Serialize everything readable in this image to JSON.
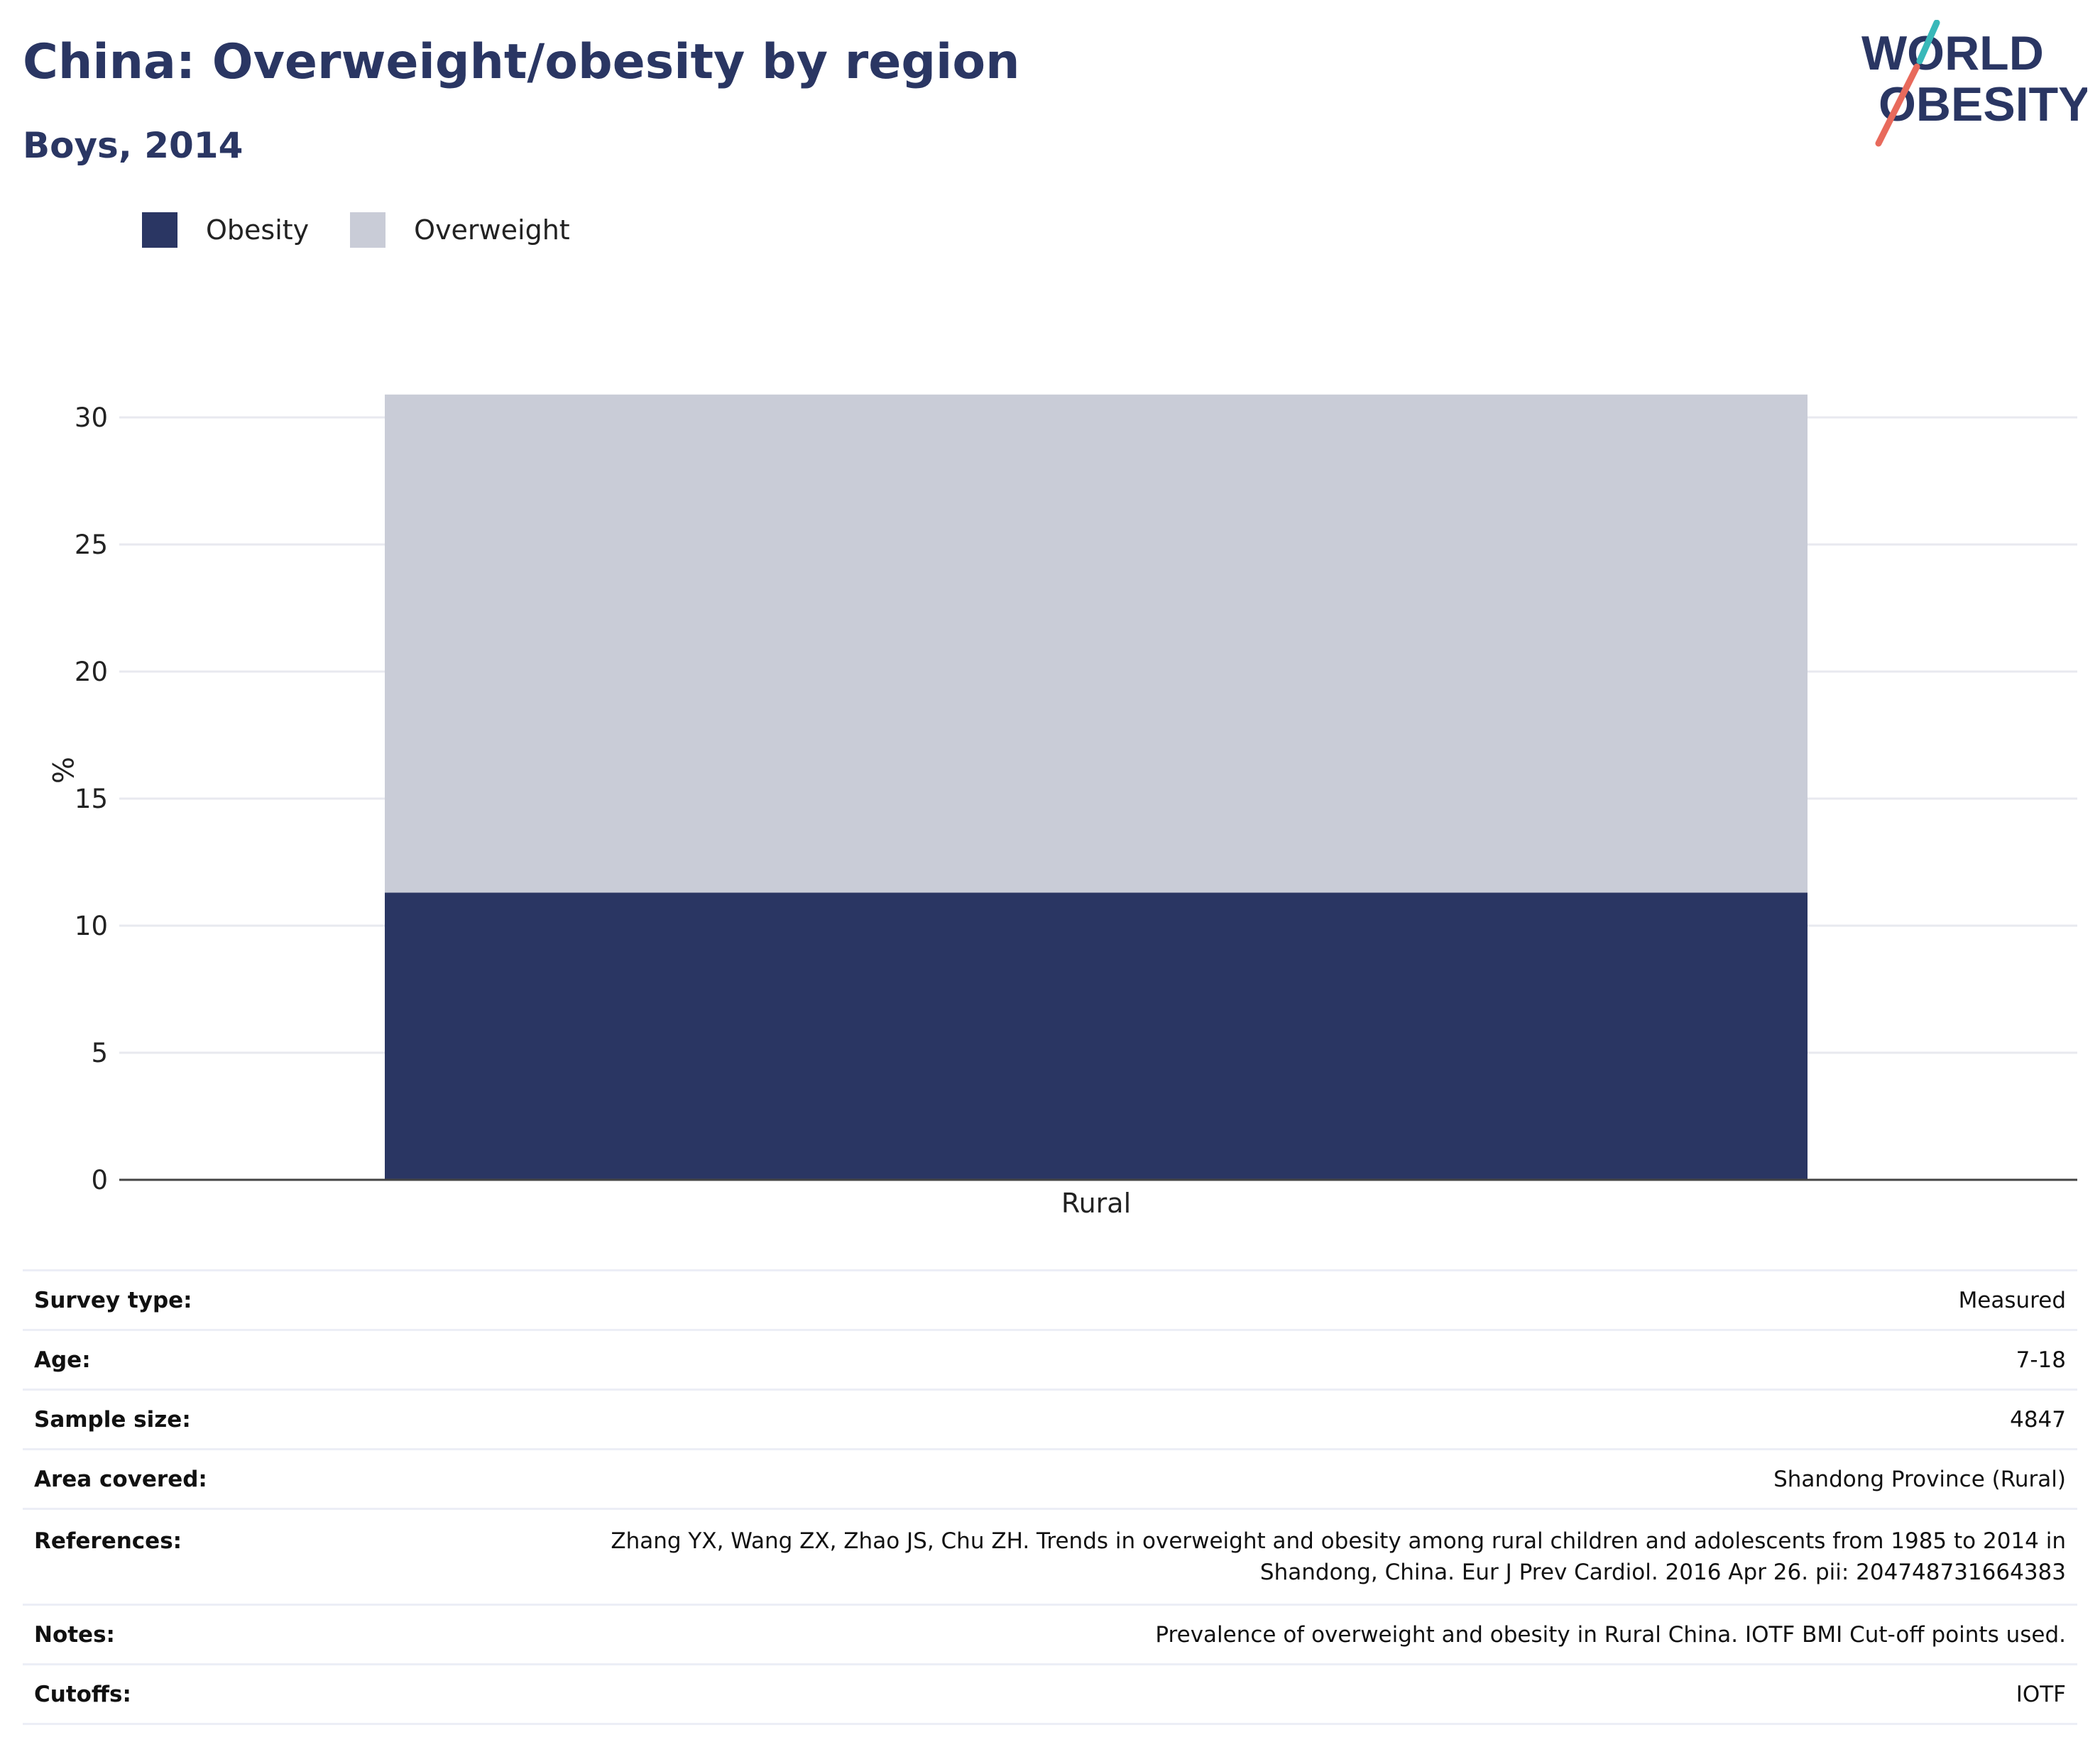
{
  "header": {
    "title": "China: Overweight/obesity by region",
    "subtitle": "Boys, 2014",
    "logo_line1": "WORLD",
    "logo_line2": "OBESITY"
  },
  "colors": {
    "obesity": "#2a3663",
    "overweight": "#c9ccd7",
    "text": "#2a3663",
    "grid": "#e8e9ef",
    "logo_teal": "#39b8b9",
    "logo_coral": "#e86a5c"
  },
  "chart_data": {
    "type": "bar",
    "stacked": true,
    "categories": [
      "Rural"
    ],
    "series": [
      {
        "name": "Obesity",
        "values": [
          11.3
        ]
      },
      {
        "name": "Overweight",
        "values": [
          19.6
        ]
      }
    ],
    "ylabel": "%",
    "xlabel": "",
    "ylim": [
      0,
      30
    ],
    "yticks": [
      0,
      5,
      10,
      15,
      20,
      25,
      30
    ],
    "grid": true,
    "legend_position": "top-left"
  },
  "meta": {
    "rows": [
      {
        "key": "Survey type:",
        "value": "Measured"
      },
      {
        "key": "Age:",
        "value": "7-18"
      },
      {
        "key": "Sample size:",
        "value": "4847"
      },
      {
        "key": "Area covered:",
        "value": "Shandong Province (Rural)"
      },
      {
        "key": "References:",
        "value_lines": [
          "Zhang YX, Wang ZX, Zhao JS, Chu ZH. Trends in overweight and obesity among rural children and adolescents from 1985 to 2014 in",
          "Shandong, China. Eur J Prev Cardiol. 2016 Apr 26. pii: 204748731664383"
        ]
      },
      {
        "key": "Notes:",
        "value": "Prevalence of overweight and obesity in Rural China. IOTF BMI Cut-off points used."
      },
      {
        "key": "Cutoffs:",
        "value": "IOTF"
      }
    ]
  }
}
